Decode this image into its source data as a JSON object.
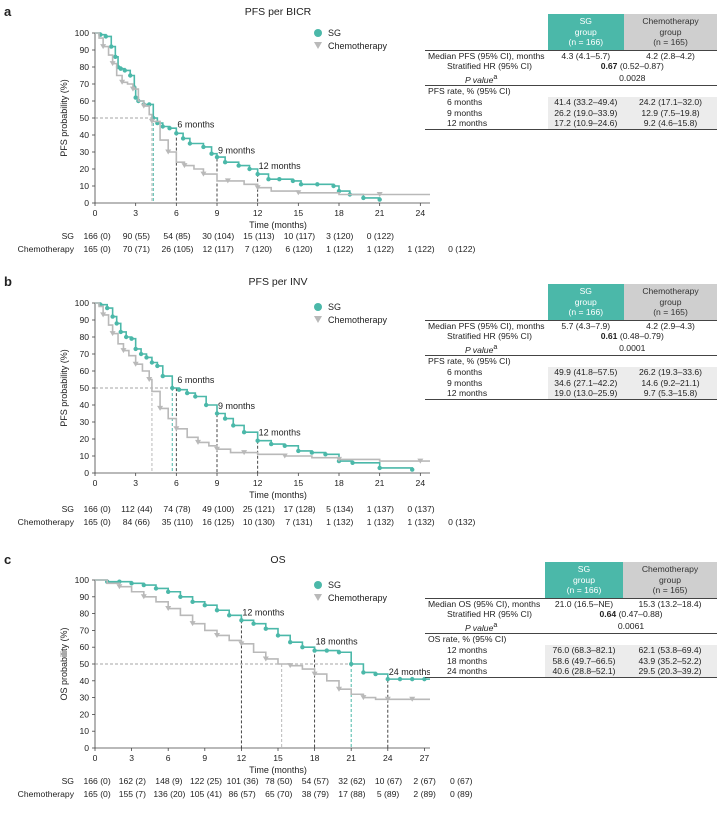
{
  "colors": {
    "sg": "#4bb8a9",
    "chemo": "#b9b9b9",
    "sg_ref": "#2f9c8e",
    "chemo_ref": "#777777"
  },
  "table_headers": {
    "sg": "SG group",
    "sg_n": "(n = 166)",
    "chemo": "Chemotherapy group",
    "chemo_n": "(n = 165)"
  },
  "chart_data": [
    {
      "panel": "a",
      "type": "line",
      "title": "PFS per BICR",
      "xlabel": "Time (months)",
      "ylabel": "PFS probability (%)",
      "xlim": [
        0,
        27
      ],
      "ylim": [
        0,
        100
      ],
      "xticks": [
        0,
        3,
        6,
        9,
        12,
        15,
        18,
        21,
        24,
        27
      ],
      "yticks": [
        0,
        10,
        20,
        30,
        40,
        50,
        60,
        70,
        80,
        90,
        100
      ],
      "legend": [
        "SG",
        "Chemotherapy"
      ],
      "reference": {
        "y": 50,
        "sg_x": 4.3,
        "chemo_x": 4.2
      },
      "landmarks": [
        {
          "label": "6 months",
          "x": 6,
          "y": 41.4
        },
        {
          "label": "9 months",
          "x": 9,
          "y": 26.2
        },
        {
          "label": "12 months",
          "x": 12,
          "y": 17.2
        }
      ],
      "series": [
        {
          "name": "SG",
          "x": [
            0,
            0.4,
            0.8,
            1.2,
            1.5,
            1.7,
            1.9,
            2.2,
            2.6,
            2.9,
            3.0,
            3.2,
            3.6,
            4.0,
            4.3,
            4.6,
            5.0,
            5.5,
            6.0,
            6.5,
            7.0,
            8.0,
            8.6,
            9.0,
            9.6,
            10.6,
            11.4,
            12.0,
            12.8,
            13.6,
            14.6,
            15.2,
            16.4,
            17.6,
            18.0,
            18.8,
            19.8,
            21.0
          ],
          "y": [
            100,
            99,
            98,
            92,
            86,
            80,
            79,
            78,
            75,
            68,
            62,
            60,
            58,
            58,
            50,
            47,
            45,
            44,
            41,
            38,
            35,
            33,
            29,
            27,
            24,
            22,
            20,
            17,
            14,
            14,
            13,
            11,
            11,
            10,
            7,
            5,
            3,
            2
          ]
        },
        {
          "name": "Chemotherapy",
          "x": [
            0,
            0.3,
            0.6,
            1.0,
            1.3,
            1.6,
            2.0,
            2.4,
            2.8,
            3.2,
            3.6,
            4.0,
            4.2,
            4.8,
            5.4,
            6.0,
            6.6,
            7.3,
            8.0,
            9.0,
            9.8,
            11.0,
            12.0,
            13.0,
            15.0,
            18.0,
            21.0,
            24.0,
            26.3
          ],
          "y": [
            100,
            97,
            92,
            87,
            82,
            75,
            71,
            70,
            67,
            60,
            57,
            52,
            48,
            37,
            30,
            24,
            22,
            20,
            17,
            13,
            13,
            11,
            9,
            7,
            6,
            5,
            5,
            5,
            5
          ]
        }
      ],
      "risk_table": {
        "rows": [
          {
            "label": "SG",
            "values": [
              "166 (0)",
              "90 (55)",
              "54 (85)",
              "30 (104)",
              "15 (113)",
              "10 (117)",
              "3 (120)",
              "0 (122)"
            ]
          },
          {
            "label": "Chemotherapy",
            "values": [
              "165 (0)",
              "70 (71)",
              "26 (105)",
              "12 (117)",
              "7 (120)",
              "6 (120)",
              "1 (122)",
              "1 (122)",
              "1 (122)",
              "0 (122)"
            ]
          }
        ]
      },
      "stats": {
        "median_label": "Median PFS (95% CI), months",
        "median_sg": "4.3 (4.1–5.7)",
        "median_chemo": "4.2 (2.8–4.2)",
        "hr_label": "Stratified HR (95% CI)",
        "hr_bold": "0.67",
        "hr_rest": "(0.52–0.87)",
        "p_label": "P value",
        "p_sup": "a",
        "p_value": "0.0028",
        "rate_label": "PFS rate, % (95% CI)",
        "rates": [
          {
            "label": "6 months",
            "sg": "41.4 (33.2–49.4)",
            "chemo": "24.2 (17.1–32.0)"
          },
          {
            "label": "9 months",
            "sg": "26.2 (19.0–33.9)",
            "chemo": "12.9 (7.5–19.8)"
          },
          {
            "label": "12 months",
            "sg": "17.2 (10.9–24.6)",
            "chemo": "9.2 (4.6–15.8)"
          }
        ]
      }
    },
    {
      "panel": "b",
      "type": "line",
      "title": "PFS per INV",
      "xlabel": "Time (months)",
      "ylabel": "PFS probability (%)",
      "xlim": [
        0,
        27
      ],
      "ylim": [
        0,
        100
      ],
      "xticks": [
        0,
        3,
        6,
        9,
        12,
        15,
        18,
        21,
        24,
        27
      ],
      "yticks": [
        0,
        10,
        20,
        30,
        40,
        50,
        60,
        70,
        80,
        90,
        100
      ],
      "legend": [
        "SG",
        "Chemotherapy"
      ],
      "reference": {
        "y": 50,
        "sg_x": 5.7,
        "chemo_x": 4.2
      },
      "landmarks": [
        {
          "label": "6 months",
          "x": 6,
          "y": 49.9
        },
        {
          "label": "9 months",
          "x": 9,
          "y": 34.6
        },
        {
          "label": "12 months",
          "x": 12,
          "y": 19.0
        }
      ],
      "series": [
        {
          "name": "SG",
          "x": [
            0,
            0.4,
            0.9,
            1.3,
            1.6,
            1.9,
            2.3,
            2.7,
            3.0,
            3.4,
            3.8,
            4.2,
            4.6,
            5.0,
            5.7,
            6.2,
            6.8,
            7.4,
            8.2,
            9.0,
            9.6,
            10.2,
            11.0,
            12.0,
            13.0,
            14.0,
            15.0,
            16.0,
            17.0,
            18.0,
            19.0,
            21.0,
            23.4
          ],
          "y": [
            100,
            99,
            97,
            92,
            88,
            83,
            80,
            79,
            73,
            70,
            68,
            65,
            63,
            57,
            50,
            49,
            47,
            45,
            40,
            35,
            32,
            28,
            24,
            19,
            17,
            16,
            13,
            12,
            11,
            7,
            6,
            3,
            2
          ]
        },
        {
          "name": "Chemotherapy",
          "x": [
            0,
            0.3,
            0.6,
            1.0,
            1.3,
            1.7,
            2.1,
            2.5,
            3.0,
            3.5,
            4.0,
            4.2,
            4.8,
            5.4,
            6.0,
            6.8,
            7.6,
            8.4,
            9.0,
            10.0,
            11.0,
            12.0,
            14.0,
            16.0,
            18.0,
            21.0,
            24.0,
            26.4
          ],
          "y": [
            100,
            98,
            93,
            87,
            82,
            76,
            72,
            69,
            64,
            60,
            55,
            48,
            38,
            32,
            26,
            21,
            18,
            16,
            14,
            12,
            12,
            11,
            10,
            9,
            8,
            7,
            7,
            7
          ]
        }
      ],
      "risk_table": {
        "rows": [
          {
            "label": "SG",
            "values": [
              "166 (0)",
              "112 (44)",
              "74 (78)",
              "49 (100)",
              "25 (121)",
              "17 (128)",
              "5 (134)",
              "1 (137)",
              "0 (137)"
            ]
          },
          {
            "label": "Chemotherapy",
            "values": [
              "165 (0)",
              "84 (66)",
              "35 (110)",
              "16 (125)",
              "10 (130)",
              "7 (131)",
              "1 (132)",
              "1 (132)",
              "1 (132)",
              "0 (132)"
            ]
          }
        ]
      },
      "stats": {
        "median_label": "Median PFS (95% CI), months",
        "median_sg": "5.7 (4.3–7.9)",
        "median_chemo": "4.2 (2.9–4.3)",
        "hr_label": "Stratified HR (95% CI)",
        "hr_bold": "0.61",
        "hr_rest": "(0.48–0.79)",
        "p_label": "P value",
        "p_sup": "a",
        "p_value": "0.0001",
        "rate_label": "PFS rate, % (95% CI)",
        "rates": [
          {
            "label": "6 months",
            "sg": "49.9 (41.8–57.5)",
            "chemo": "26.2 (19.3–33.6)"
          },
          {
            "label": "9 months",
            "sg": "34.6 (27.1–42.2)",
            "chemo": "14.6 (9.2–21.1)"
          },
          {
            "label": "12 months",
            "sg": "19.0 (13.0–25.9)",
            "chemo": "9.7 (5.3–15.8)"
          }
        ]
      }
    },
    {
      "panel": "c",
      "type": "line",
      "title": "OS",
      "xlabel": "Time (months)",
      "ylabel": "OS probability (%)",
      "xlim": [
        0,
        30
      ],
      "ylim": [
        0,
        100
      ],
      "xticks": [
        0,
        3,
        6,
        9,
        12,
        15,
        18,
        21,
        24,
        27,
        30
      ],
      "yticks": [
        0,
        10,
        20,
        30,
        40,
        50,
        60,
        70,
        80,
        90,
        100
      ],
      "legend": [
        "SG",
        "Chemotherapy"
      ],
      "reference": {
        "y": 50,
        "sg_x": 21.0,
        "chemo_x": 15.3
      },
      "landmarks": [
        {
          "label": "12 months",
          "x": 12,
          "y": 76.0
        },
        {
          "label": "18 months",
          "x": 18,
          "y": 58.6
        },
        {
          "label": "24 months",
          "x": 24,
          "y": 40.6
        }
      ],
      "series": [
        {
          "name": "SG",
          "x": [
            0,
            1,
            2,
            3,
            4,
            5,
            6,
            7,
            8,
            9,
            10,
            11,
            12,
            13,
            14,
            15,
            16,
            17,
            18,
            19,
            20,
            21,
            22,
            23,
            24,
            25,
            26,
            27,
            28
          ],
          "y": [
            100,
            99,
            99,
            98,
            97,
            95,
            93,
            90,
            87,
            85,
            82,
            79,
            76,
            74,
            71,
            67,
            63,
            60,
            58,
            58,
            57,
            50,
            45,
            44,
            41,
            41,
            41,
            41,
            41
          ]
        },
        {
          "name": "Chemotherapy",
          "x": [
            0,
            1,
            2,
            3,
            4,
            5,
            6,
            7,
            8,
            9,
            10,
            11,
            12,
            13,
            14,
            15,
            16,
            17,
            18,
            19,
            20,
            21,
            22,
            23,
            24,
            25,
            26,
            27,
            28.5
          ],
          "y": [
            100,
            98,
            96,
            93,
            90,
            87,
            83,
            79,
            74,
            70,
            67,
            64,
            62,
            57,
            53,
            50,
            49,
            47,
            44,
            40,
            35,
            32,
            30,
            29,
            29,
            29,
            29,
            29,
            29
          ]
        }
      ],
      "risk_table": {
        "rows": [
          {
            "label": "SG",
            "values": [
              "166 (0)",
              "162 (2)",
              "148 (9)",
              "122 (25)",
              "101 (36)",
              "78 (50)",
              "54 (57)",
              "32 (62)",
              "10 (67)",
              "2 (67)",
              "0 (67)"
            ]
          },
          {
            "label": "Chemotherapy",
            "values": [
              "165 (0)",
              "155 (7)",
              "136 (20)",
              "105 (41)",
              "86 (57)",
              "65 (70)",
              "38 (79)",
              "17 (88)",
              "5 (89)",
              "2 (89)",
              "0 (89)"
            ]
          }
        ]
      },
      "stats": {
        "median_label": "Median OS (95% CI), months",
        "median_sg": "21.0 (16.5–NE)",
        "median_chemo": "15.3 (13.2–18.4)",
        "hr_label": "Stratified HR (95% CI)",
        "hr_bold": "0.64",
        "hr_rest": "(0.47–0.88)",
        "p_label": "P value",
        "p_sup": "a",
        "p_value": "0.0061",
        "rate_label": "OS rate, % (95% CI)",
        "rates": [
          {
            "label": "12 months",
            "sg": "76.0 (68.3–82.1)",
            "chemo": "62.1 (53.8–69.4)"
          },
          {
            "label": "18 months",
            "sg": "58.6 (49.7–66.5)",
            "chemo": "43.9 (35.2–52.2)"
          },
          {
            "label": "24 months",
            "sg": "40.6 (28.8–52.1)",
            "chemo": "29.5 (20.3–39.2)"
          }
        ]
      }
    }
  ]
}
